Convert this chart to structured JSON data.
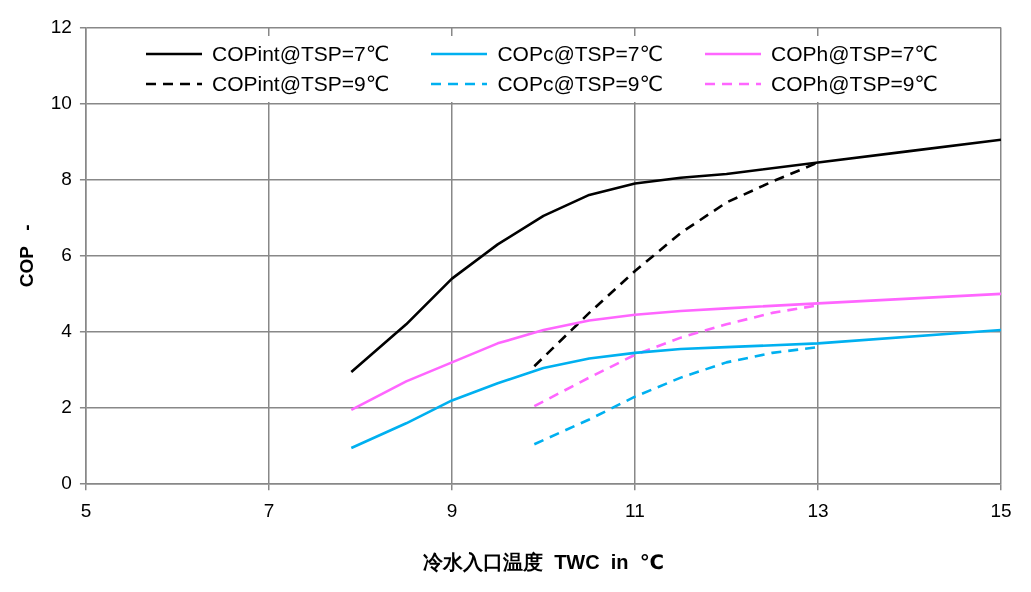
{
  "chart_data": {
    "type": "line",
    "xlabel": "冷水入口温度  TWC  in  ℃",
    "ylabel": "COP   -",
    "xlim": [
      5,
      15
    ],
    "xticks": [
      5,
      7,
      9,
      11,
      13,
      15
    ],
    "ylim": [
      0,
      12
    ],
    "yticks": [
      0,
      2,
      4,
      6,
      8,
      10,
      12
    ],
    "grid": true,
    "legend": "top",
    "marker": "none",
    "series": [
      {
        "name": "COPint@TSP=7℃",
        "color": "#000000",
        "line_style": "solid",
        "x": [
          7.9,
          8.5,
          9,
          9.5,
          10,
          10.5,
          11,
          11.5,
          12,
          13,
          14,
          15
        ],
        "values": [
          2.95,
          4.2,
          5.4,
          6.3,
          7.05,
          7.6,
          7.9,
          8.05,
          8.15,
          8.45,
          8.75,
          9.05
        ]
      },
      {
        "name": "COPc@TSP=7℃",
        "color": "#00b0f0",
        "line_style": "solid",
        "x": [
          7.9,
          8.5,
          9,
          9.5,
          10,
          10.5,
          11,
          11.5,
          12,
          13,
          15
        ],
        "values": [
          0.95,
          1.6,
          2.2,
          2.65,
          3.05,
          3.3,
          3.45,
          3.55,
          3.6,
          3.7,
          4.05
        ]
      },
      {
        "name": "COPh@TSP=7℃",
        "color": "#ff66ff",
        "line_style": "solid",
        "x": [
          7.9,
          8.5,
          9,
          9.5,
          10,
          10.5,
          11,
          11.5,
          12,
          13,
          15
        ],
        "values": [
          1.95,
          2.7,
          3.2,
          3.7,
          4.05,
          4.3,
          4.45,
          4.55,
          4.62,
          4.75,
          5.0
        ]
      },
      {
        "name": "COPint@TSP=9℃",
        "color": "#000000",
        "line_style": "dashed",
        "x": [
          9.9,
          10.5,
          11,
          11.5,
          12,
          12.5,
          13
        ],
        "values": [
          3.1,
          4.5,
          5.6,
          6.6,
          7.4,
          7.95,
          8.45
        ]
      },
      {
        "name": "COPc@TSP=9℃",
        "color": "#00b0f0",
        "line_style": "dashed",
        "x": [
          9.9,
          10.5,
          11,
          11.5,
          12,
          12.5,
          13
        ],
        "values": [
          1.05,
          1.7,
          2.3,
          2.8,
          3.2,
          3.45,
          3.6
        ]
      },
      {
        "name": "COPh@TSP=9℃",
        "color": "#ff66ff",
        "line_style": "dashed",
        "x": [
          9.9,
          10.5,
          11,
          11.5,
          12,
          12.5,
          13
        ],
        "values": [
          2.05,
          2.8,
          3.4,
          3.85,
          4.2,
          4.5,
          4.7
        ]
      }
    ]
  }
}
